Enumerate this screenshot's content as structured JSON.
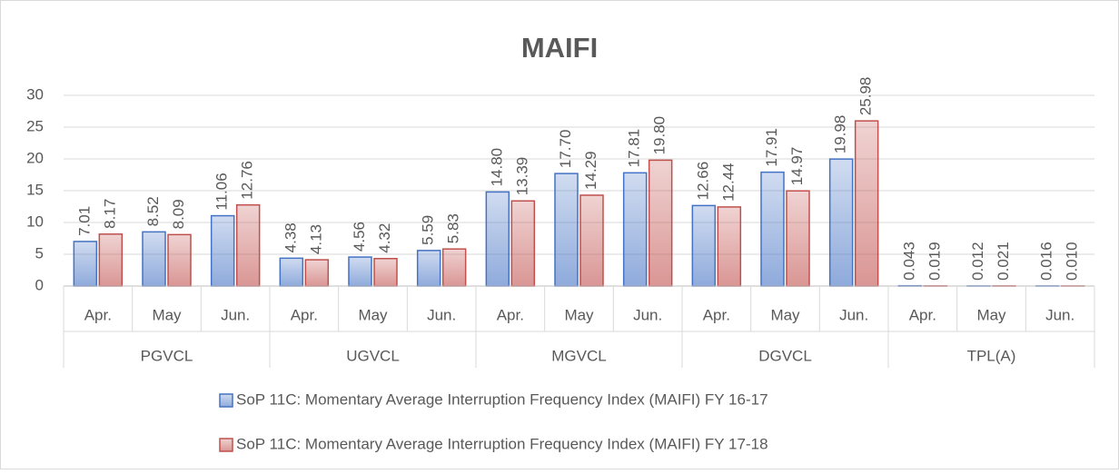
{
  "chart_data": {
    "type": "bar",
    "title": "MAIFI",
    "categories": [
      "Apr.",
      "May",
      "Jun.",
      "Apr.",
      "May",
      "Jun.",
      "Apr.",
      "May",
      "Jun.",
      "Apr.",
      "May",
      "Jun.",
      "Apr.",
      "May",
      "Jun."
    ],
    "groups": [
      "PGVCL",
      "UGVCL",
      "MGVCL",
      "DGVCL",
      "TPL(A)"
    ],
    "series": [
      {
        "name": "SoP 11C: Momentary Average Interruption Frequency Index (MAIFI) FY 16-17",
        "color": "#4472c4",
        "values": [
          7.01,
          8.52,
          11.06,
          4.38,
          4.56,
          5.59,
          14.8,
          17.7,
          17.81,
          12.66,
          17.91,
          19.98,
          0.043,
          0.012,
          0.016
        ],
        "value_labels": [
          "7.01",
          "8.52",
          "11.06",
          "4.38",
          "4.56",
          "5.59",
          "14.80",
          "17.70",
          "17.81",
          "12.66",
          "17.91",
          "19.98",
          "0.043",
          "0.012",
          "0.016"
        ]
      },
      {
        "name": "SoP 11C: Momentary Average Interruption Frequency Index (MAIFI) FY 17-18",
        "color": "#c0504d",
        "values": [
          8.17,
          8.09,
          12.76,
          4.13,
          4.32,
          5.83,
          13.39,
          14.29,
          19.8,
          12.44,
          14.97,
          25.98,
          0.019,
          0.021,
          0.01
        ],
        "value_labels": [
          "8.17",
          "8.09",
          "12.76",
          "4.13",
          "4.32",
          "5.83",
          "13.39",
          "14.29",
          "19.80",
          "12.44",
          "14.97",
          "25.98",
          "0.019",
          "0.021",
          "0.010"
        ]
      }
    ],
    "ylim": [
      0,
      30
    ],
    "yticks": [
      0,
      5,
      10,
      15,
      20,
      25,
      30
    ],
    "grid": true,
    "legend": "bottom"
  }
}
